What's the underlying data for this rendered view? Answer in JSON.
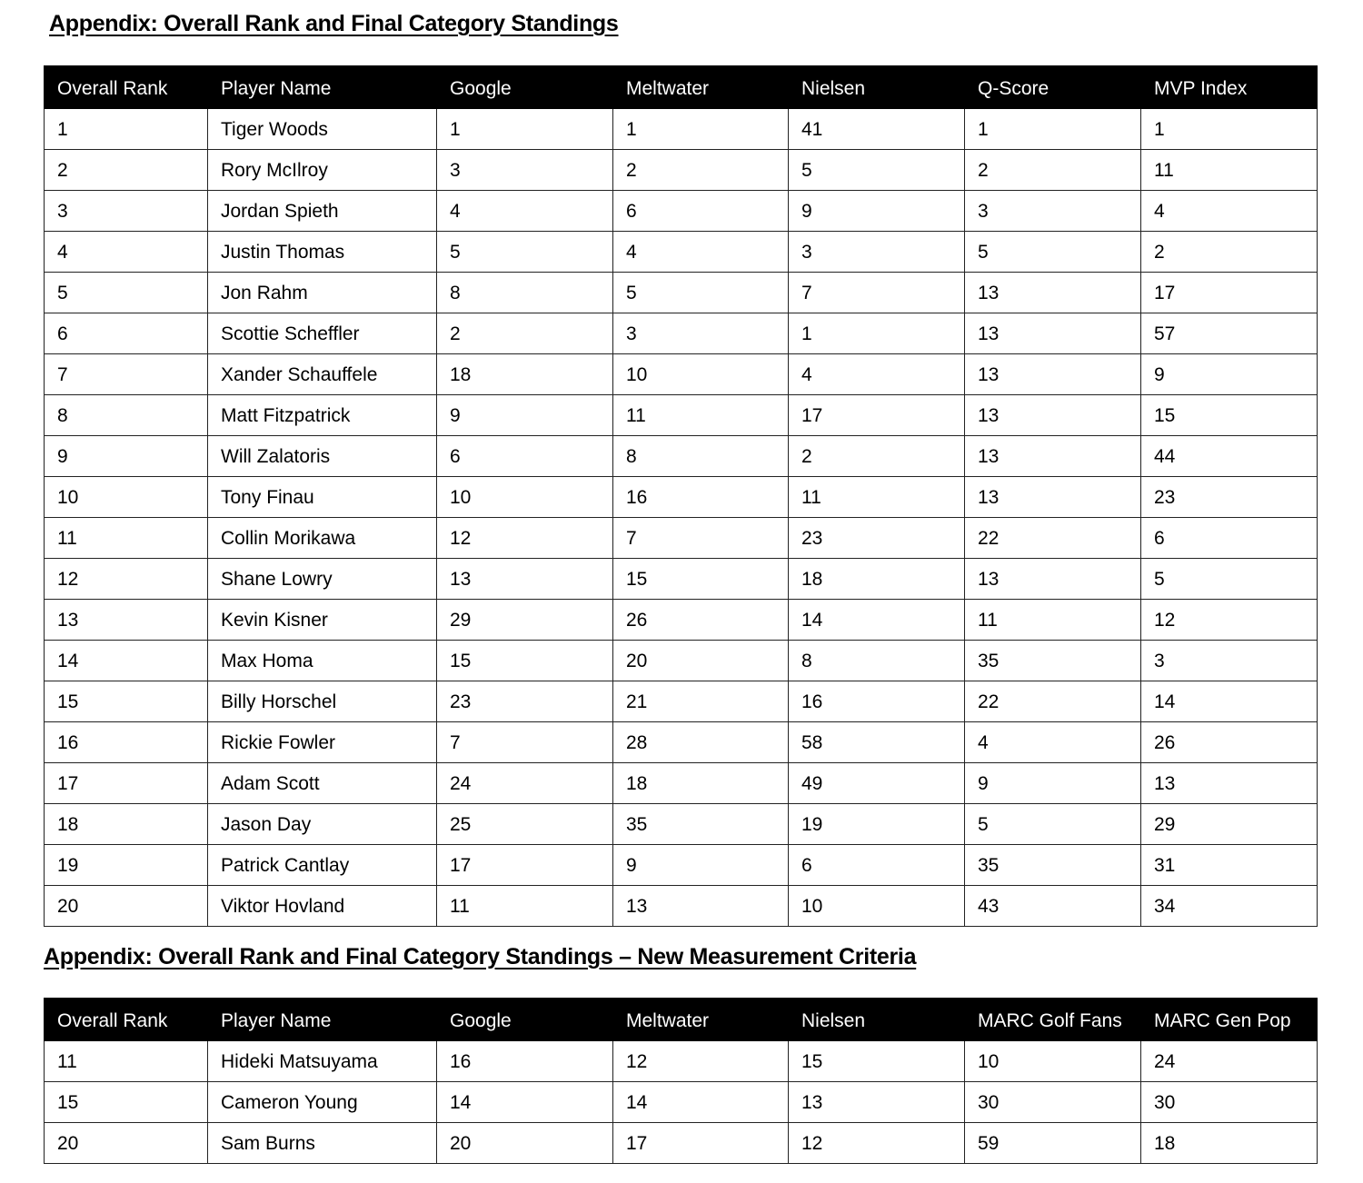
{
  "table1": {
    "title": "Appendix: Overall Rank and Final Category Standings",
    "headers": [
      "Overall Rank",
      "Player Name",
      "Google",
      "Meltwater",
      "Nielsen",
      "Q-Score",
      "MVP Index"
    ],
    "rows": [
      [
        "1",
        "Tiger Woods",
        "1",
        "1",
        "41",
        "1",
        "1"
      ],
      [
        "2",
        "Rory McIlroy",
        "3",
        "2",
        "5",
        "2",
        "11"
      ],
      [
        "3",
        "Jordan Spieth",
        "4",
        "6",
        "9",
        "3",
        "4"
      ],
      [
        "4",
        "Justin Thomas",
        "5",
        "4",
        "3",
        "5",
        "2"
      ],
      [
        "5",
        "Jon Rahm",
        "8",
        "5",
        "7",
        "13",
        "17"
      ],
      [
        "6",
        "Scottie Scheffler",
        "2",
        "3",
        "1",
        "13",
        "57"
      ],
      [
        "7",
        "Xander Schauffele",
        "18",
        "10",
        "4",
        "13",
        "9"
      ],
      [
        "8",
        "Matt Fitzpatrick",
        "9",
        "11",
        "17",
        "13",
        "15"
      ],
      [
        "9",
        "Will Zalatoris",
        "6",
        "8",
        "2",
        "13",
        "44"
      ],
      [
        "10",
        "Tony Finau",
        "10",
        "16",
        "11",
        "13",
        "23"
      ],
      [
        "11",
        "Collin Morikawa",
        "12",
        "7",
        "23",
        "22",
        "6"
      ],
      [
        "12",
        "Shane Lowry",
        "13",
        "15",
        "18",
        "13",
        "5"
      ],
      [
        "13",
        "Kevin Kisner",
        "29",
        "26",
        "14",
        "11",
        "12"
      ],
      [
        "14",
        "Max Homa",
        "15",
        "20",
        "8",
        "35",
        "3"
      ],
      [
        "15",
        "Billy Horschel",
        "23",
        "21",
        "16",
        "22",
        "14"
      ],
      [
        "16",
        "Rickie Fowler",
        "7",
        "28",
        "58",
        "4",
        "26"
      ],
      [
        "17",
        "Adam Scott",
        "24",
        "18",
        "49",
        "9",
        "13"
      ],
      [
        "18",
        "Jason Day",
        "25",
        "35",
        "19",
        "5",
        "29"
      ],
      [
        "19",
        "Patrick Cantlay",
        "17",
        "9",
        "6",
        "35",
        "31"
      ],
      [
        "20",
        "Viktor Hovland",
        "11",
        "13",
        "10",
        "43",
        "34"
      ]
    ]
  },
  "table2": {
    "title": "Appendix: Overall Rank and Final Category Standings – New Measurement Criteria",
    "headers": [
      "Overall Rank",
      "Player Name",
      "Google",
      "Meltwater",
      "Nielsen",
      "MARC Golf Fans",
      "MARC Gen Pop"
    ],
    "rows": [
      [
        "11",
        "Hideki Matsuyama",
        "16",
        "12",
        "15",
        "10",
        "24"
      ],
      [
        "15",
        "Cameron Young",
        "14",
        "14",
        "13",
        "30",
        "30"
      ],
      [
        "20",
        "Sam Burns",
        "20",
        "17",
        "12",
        "59",
        "18"
      ]
    ]
  }
}
